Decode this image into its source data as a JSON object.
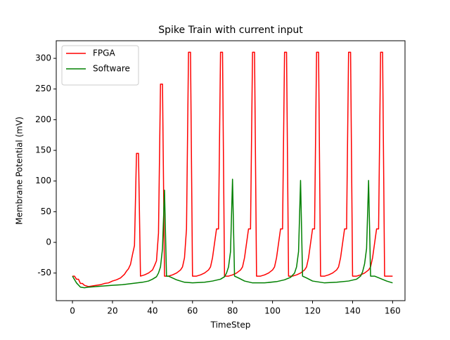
{
  "chart_data": {
    "type": "line",
    "title": "Spike Train with current input",
    "x_label": "TimeStep",
    "y_label": "Membrane Potential (mV)",
    "xlim": [
      -8.1,
      166.2
    ],
    "ylim": [
      -95,
      328.7
    ],
    "xticks": [
      0,
      20,
      40,
      60,
      80,
      100,
      120,
      140,
      160
    ],
    "yticks": [
      -50,
      0,
      50,
      100,
      150,
      200,
      250,
      300
    ],
    "legend": "upper left",
    "series": [
      {
        "name": "FPGA",
        "color": "#ff0000",
        "x": [
          0,
          1,
          2,
          3,
          4,
          5,
          6,
          8,
          10,
          12,
          14,
          16,
          18,
          20,
          22,
          24,
          26,
          27,
          28,
          29,
          30,
          31,
          32,
          33,
          34,
          36,
          38,
          40,
          41,
          42,
          43,
          44,
          45,
          46,
          48,
          50,
          52,
          54,
          55,
          56,
          57,
          58,
          59,
          60,
          62,
          64,
          66,
          68,
          69,
          70,
          72,
          73,
          74,
          75,
          76,
          78,
          80,
          82,
          84,
          85,
          86,
          88,
          89,
          90,
          91,
          92,
          94,
          96,
          98,
          100,
          101,
          102,
          104,
          105,
          106,
          107,
          108,
          110,
          112,
          114,
          116,
          117,
          118,
          120,
          121,
          122,
          123,
          124,
          126,
          128,
          130,
          132,
          133,
          134,
          136,
          137,
          138,
          139,
          140,
          142,
          144,
          146,
          148,
          149,
          150,
          152,
          153,
          154,
          155,
          156,
          160
        ],
        "values": [
          -55,
          -55,
          -60,
          -60,
          -67,
          -67,
          -70,
          -72,
          -71,
          -70,
          -69,
          -67,
          -66,
          -63,
          -61,
          -58,
          -52,
          -47,
          -43,
          -36,
          -20,
          -5,
          145,
          145,
          -55,
          -53,
          -50,
          -45,
          -38,
          -30,
          15,
          258,
          258,
          -55,
          -55,
          -53,
          -50,
          -45,
          -40,
          -25,
          22,
          310,
          310,
          -55,
          -55,
          -53,
          -50,
          -45,
          -40,
          -25,
          22,
          22,
          310,
          310,
          -55,
          -55,
          -53,
          -50,
          -45,
          -40,
          -25,
          22,
          22,
          310,
          310,
          -55,
          -55,
          -53,
          -50,
          -45,
          -40,
          -25,
          22,
          22,
          310,
          310,
          -55,
          -55,
          -53,
          -50,
          -45,
          -40,
          -25,
          22,
          22,
          310,
          310,
          -55,
          -55,
          -53,
          -50,
          -45,
          -40,
          -25,
          22,
          22,
          310,
          310,
          -55,
          -55,
          -53,
          -50,
          -45,
          -40,
          -25,
          22,
          22,
          310,
          310,
          -55,
          -55
        ]
      },
      {
        "name": "Software",
        "color": "#008000",
        "x": [
          0,
          2,
          4,
          6,
          8,
          12,
          16,
          20,
          25,
          30,
          35,
          38,
          40,
          42,
          43,
          44,
          45,
          46,
          47,
          48,
          52,
          56,
          60,
          66,
          70,
          74,
          76,
          77,
          78,
          79,
          80,
          81,
          83,
          86,
          90,
          96,
          102,
          106,
          109,
          111,
          112,
          113,
          114,
          115,
          117,
          120,
          126,
          132,
          138,
          142,
          144,
          145,
          146,
          147,
          148,
          149,
          151,
          154,
          157,
          160
        ],
        "values": [
          -55,
          -66,
          -73,
          -74,
          -73,
          -72,
          -71,
          -70,
          -69,
          -67,
          -65,
          -63,
          -60,
          -56,
          -50,
          -40,
          -10,
          85,
          -55,
          -55,
          -61,
          -65,
          -66,
          -65,
          -63,
          -60,
          -56,
          -50,
          -40,
          -15,
          103,
          -55,
          -58,
          -63,
          -66,
          -66,
          -64,
          -61,
          -57,
          -50,
          -40,
          -15,
          101,
          -55,
          -58,
          -63,
          -66,
          -65,
          -63,
          -60,
          -55,
          -48,
          -35,
          -10,
          101,
          -55,
          -55,
          -59,
          -63,
          -66
        ]
      }
    ]
  }
}
